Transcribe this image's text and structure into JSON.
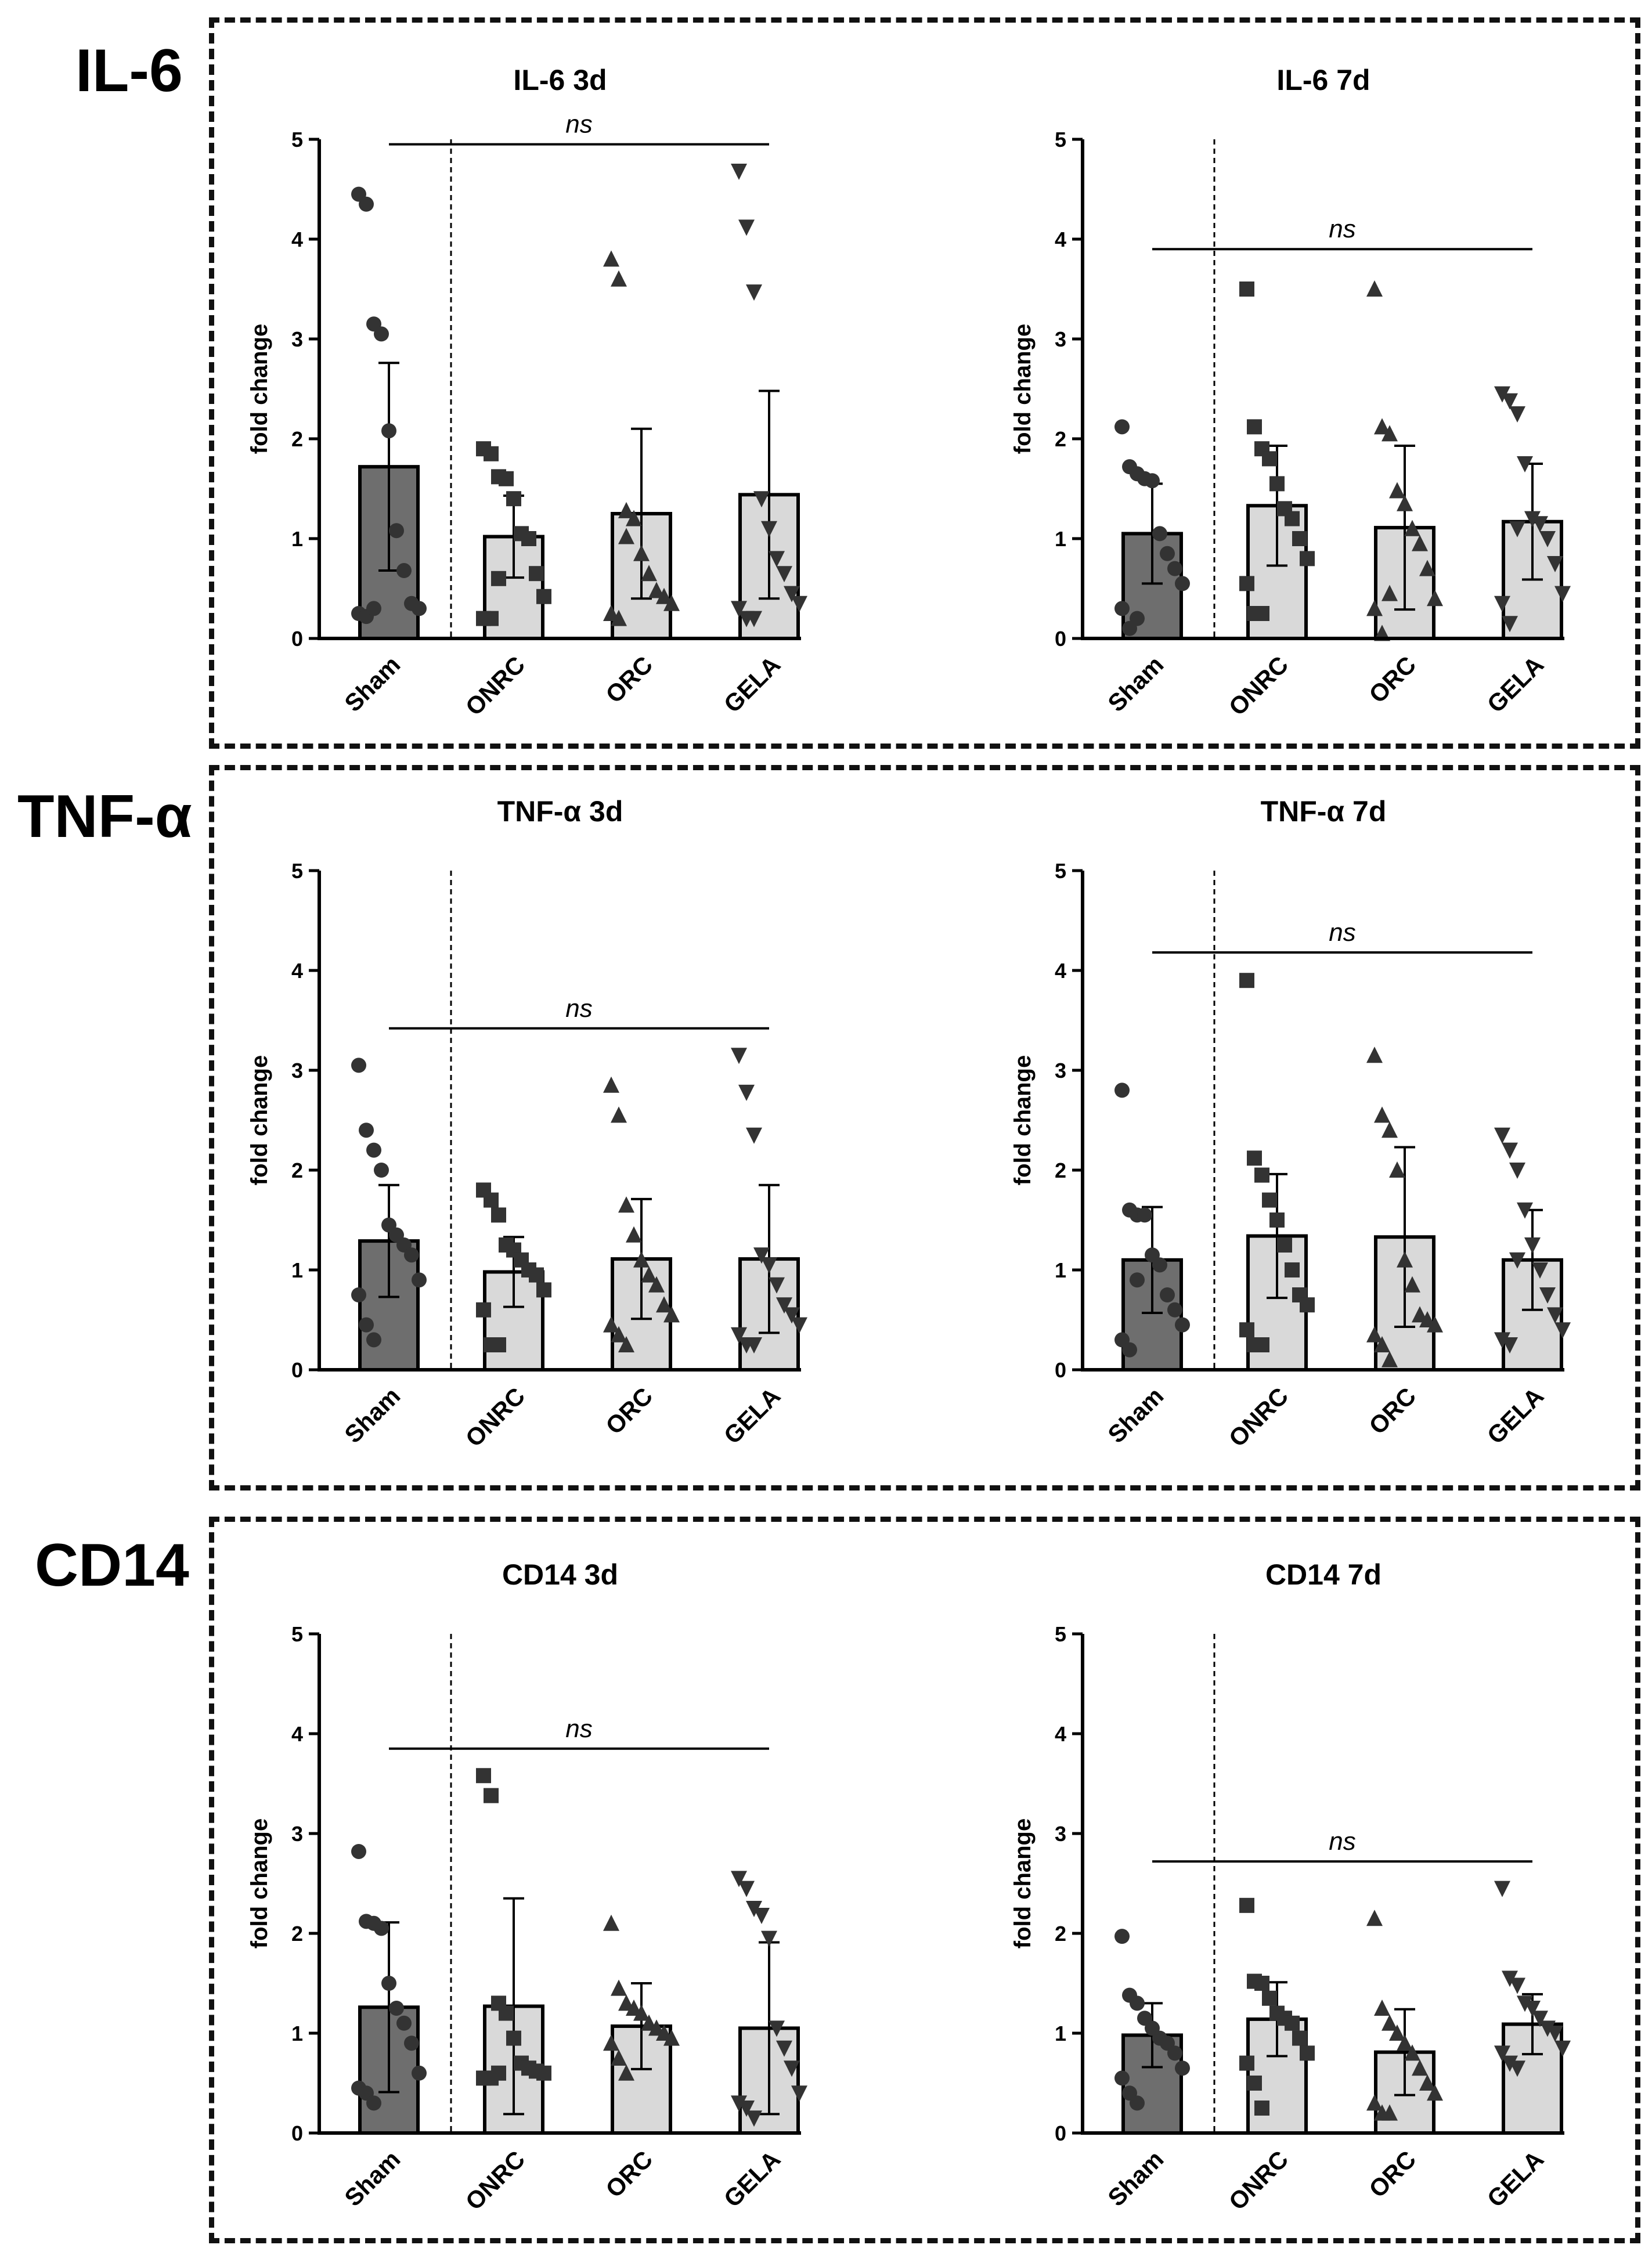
{
  "rows": [
    {
      "label": "IL-6"
    },
    {
      "label": "TNF-α"
    },
    {
      "label": "CD14"
    }
  ],
  "colors": {
    "sham_bar": "#6e6e6e",
    "group_bar": "#d9d9d9",
    "marker": "#333333",
    "ink": "#000000"
  },
  "chart_data": [
    {
      "type": "bar",
      "title": "IL-6 3d",
      "xlabel": "",
      "ylabel": "fold change",
      "ylim": [
        0,
        5
      ],
      "yticks": [
        "0",
        "1",
        "2",
        "3",
        "4",
        "5"
      ],
      "categories": [
        "Sham",
        "ONRC",
        "ORC",
        "GELA"
      ],
      "markers": [
        "circle",
        "square",
        "triangle",
        "triangle-down"
      ],
      "means": [
        1.72,
        1.02,
        1.25,
        1.44
      ],
      "sd": [
        1.04,
        0.41,
        0.85,
        1.04
      ],
      "points": [
        [
          4.45,
          4.35,
          3.15,
          3.05,
          2.08,
          1.08,
          0.68,
          0.35,
          0.3,
          0.25,
          0.22,
          0.3
        ],
        [
          1.9,
          1.85,
          1.62,
          1.6,
          1.4,
          1.05,
          1.0,
          0.65,
          0.42,
          0.2,
          0.2,
          0.6
        ],
        [
          3.8,
          3.6,
          1.28,
          1.2,
          0.85,
          0.65,
          0.48,
          0.42,
          0.35,
          0.25,
          0.2,
          1.02
        ],
        [
          4.68,
          4.12,
          3.47,
          1.4,
          1.1,
          0.8,
          0.65,
          0.45,
          0.35,
          0.3,
          0.2,
          0.2
        ]
      ],
      "annotation": "ns",
      "sig_line": {
        "from": "Sham",
        "to": "GELA",
        "y": 4.95
      }
    },
    {
      "type": "bar",
      "title": "IL-6 7d",
      "xlabel": "",
      "ylabel": "fold change",
      "ylim": [
        0,
        5
      ],
      "yticks": [
        "0",
        "1",
        "2",
        "3",
        "4",
        "5"
      ],
      "categories": [
        "Sham",
        "ONRC",
        "ORC",
        "GELA"
      ],
      "markers": [
        "circle",
        "square",
        "triangle",
        "triangle-down"
      ],
      "means": [
        1.05,
        1.33,
        1.11,
        1.17
      ],
      "sd": [
        0.5,
        0.6,
        0.82,
        0.58
      ],
      "points": [
        [
          2.12,
          1.72,
          1.65,
          1.6,
          1.58,
          1.05,
          0.85,
          0.7,
          0.55,
          0.3,
          0.1,
          0.2
        ],
        [
          3.5,
          2.12,
          1.9,
          1.8,
          1.55,
          1.3,
          1.2,
          1.0,
          0.8,
          0.55,
          0.25,
          0.25
        ],
        [
          3.5,
          2.12,
          2.05,
          1.48,
          1.35,
          1.1,
          0.95,
          0.7,
          0.4,
          0.3,
          0.05,
          0.45
        ],
        [
          2.45,
          2.38,
          2.25,
          1.75,
          1.2,
          1.15,
          1.0,
          0.75,
          0.45,
          0.35,
          0.15,
          1.1
        ]
      ],
      "annotation": "ns",
      "sig_line": {
        "from": "Sham",
        "to": "GELA",
        "y": 3.9
      }
    },
    {
      "type": "bar",
      "title": "TNF-α 3d",
      "xlabel": "",
      "ylabel": "fold change",
      "ylim": [
        0,
        5
      ],
      "yticks": [
        "0",
        "1",
        "2",
        "3",
        "4",
        "5"
      ],
      "categories": [
        "Sham",
        "ONRC",
        "ORC",
        "GELA"
      ],
      "markers": [
        "circle",
        "square",
        "triangle",
        "triangle-down"
      ],
      "means": [
        1.29,
        0.98,
        1.11,
        1.11
      ],
      "sd": [
        0.56,
        0.35,
        0.6,
        0.74
      ],
      "points": [
        [
          3.05,
          2.4,
          2.2,
          2.0,
          1.45,
          1.35,
          1.25,
          1.15,
          0.9,
          0.75,
          0.45,
          0.3
        ],
        [
          1.8,
          1.7,
          1.55,
          1.25,
          1.2,
          1.1,
          1.0,
          0.95,
          0.8,
          0.6,
          0.25,
          0.25
        ],
        [
          2.85,
          2.55,
          1.65,
          1.35,
          1.1,
          0.95,
          0.85,
          0.65,
          0.55,
          0.45,
          0.35,
          0.25
        ],
        [
          3.15,
          2.78,
          2.35,
          1.15,
          1.05,
          0.85,
          0.65,
          0.55,
          0.45,
          0.35,
          0.25,
          0.25
        ]
      ],
      "annotation": "ns",
      "sig_line": {
        "from": "Sham",
        "to": "GELA",
        "y": 3.42
      }
    },
    {
      "type": "bar",
      "title": "TNF-α 7d",
      "xlabel": "",
      "ylabel": "fold change",
      "ylim": [
        0,
        5
      ],
      "yticks": [
        "0",
        "1",
        "2",
        "3",
        "4",
        "5"
      ],
      "categories": [
        "Sham",
        "ONRC",
        "ORC",
        "GELA"
      ],
      "markers": [
        "circle",
        "square",
        "triangle",
        "triangle-down"
      ],
      "means": [
        1.1,
        1.34,
        1.33,
        1.1
      ],
      "sd": [
        0.53,
        0.62,
        0.9,
        0.5
      ],
      "points": [
        [
          2.8,
          1.6,
          1.55,
          1.55,
          1.15,
          1.05,
          0.75,
          0.6,
          0.45,
          0.3,
          0.2,
          0.9
        ],
        [
          3.9,
          2.12,
          1.95,
          1.7,
          1.5,
          1.25,
          1.0,
          0.75,
          0.65,
          0.4,
          0.25,
          0.25
        ],
        [
          3.15,
          2.55,
          2.4,
          2.0,
          1.1,
          0.85,
          0.55,
          0.5,
          0.45,
          0.35,
          0.25,
          0.1
        ],
        [
          2.35,
          2.2,
          2.0,
          1.6,
          1.25,
          1.0,
          0.75,
          0.55,
          0.4,
          0.3,
          0.25,
          1.1
        ]
      ],
      "annotation": "ns",
      "sig_line": {
        "from": "Sham",
        "to": "GELA",
        "y": 4.18
      }
    },
    {
      "type": "bar",
      "title": "CD14 3d",
      "xlabel": "",
      "ylabel": "fold change",
      "ylim": [
        0,
        5
      ],
      "yticks": [
        "0",
        "1",
        "2",
        "3",
        "4",
        "5"
      ],
      "categories": [
        "Sham",
        "ONRC",
        "ORC",
        "GELA"
      ],
      "markers": [
        "circle",
        "square",
        "triangle",
        "triangle-down"
      ],
      "means": [
        1.26,
        1.27,
        1.07,
        1.05
      ],
      "sd": [
        0.85,
        1.08,
        0.43,
        0.86
      ],
      "points": [
        [
          2.82,
          2.12,
          2.1,
          2.05,
          1.5,
          1.25,
          1.1,
          0.9,
          0.6,
          0.45,
          0.4,
          0.3
        ],
        [
          3.58,
          3.38,
          1.3,
          1.2,
          0.95,
          0.7,
          0.65,
          0.62,
          0.6,
          0.55,
          0.55,
          0.6
        ],
        [
          2.1,
          1.45,
          1.3,
          1.25,
          1.2,
          1.1,
          1.05,
          1.0,
          0.95,
          0.9,
          0.75,
          0.6
        ],
        [
          2.55,
          2.45,
          2.25,
          2.18,
          1.95,
          1.05,
          0.85,
          0.65,
          0.4,
          0.3,
          0.25,
          0.15
        ]
      ],
      "annotation": "ns",
      "sig_line": {
        "from": "Sham",
        "to": "GELA",
        "y": 3.85
      }
    },
    {
      "type": "bar",
      "title": "CD14 7d",
      "xlabel": "",
      "ylabel": "fold change",
      "ylim": [
        0,
        5
      ],
      "yticks": [
        "0",
        "1",
        "2",
        "3",
        "4",
        "5"
      ],
      "categories": [
        "Sham",
        "ONRC",
        "ORC",
        "GELA"
      ],
      "markers": [
        "circle",
        "square",
        "triangle",
        "triangle-down"
      ],
      "means": [
        0.98,
        1.14,
        0.81,
        1.09
      ],
      "sd": [
        0.32,
        0.37,
        0.43,
        0.3
      ],
      "points": [
        [
          1.97,
          1.38,
          1.3,
          1.15,
          1.05,
          0.95,
          0.9,
          0.8,
          0.65,
          0.55,
          0.4,
          0.3
        ],
        [
          2.28,
          1.52,
          1.5,
          1.35,
          1.2,
          1.15,
          1.1,
          0.95,
          0.8,
          0.7,
          0.5,
          0.25
        ],
        [
          2.15,
          1.25,
          1.1,
          1.0,
          0.9,
          0.8,
          0.65,
          0.5,
          0.4,
          0.3,
          0.2,
          0.2
        ],
        [
          2.45,
          1.55,
          1.48,
          1.3,
          1.25,
          1.15,
          1.05,
          1.0,
          0.85,
          0.8,
          0.7,
          0.65
        ]
      ],
      "annotation": "ns",
      "sig_line": {
        "from": "Sham",
        "to": "GELA",
        "y": 2.72
      }
    }
  ]
}
